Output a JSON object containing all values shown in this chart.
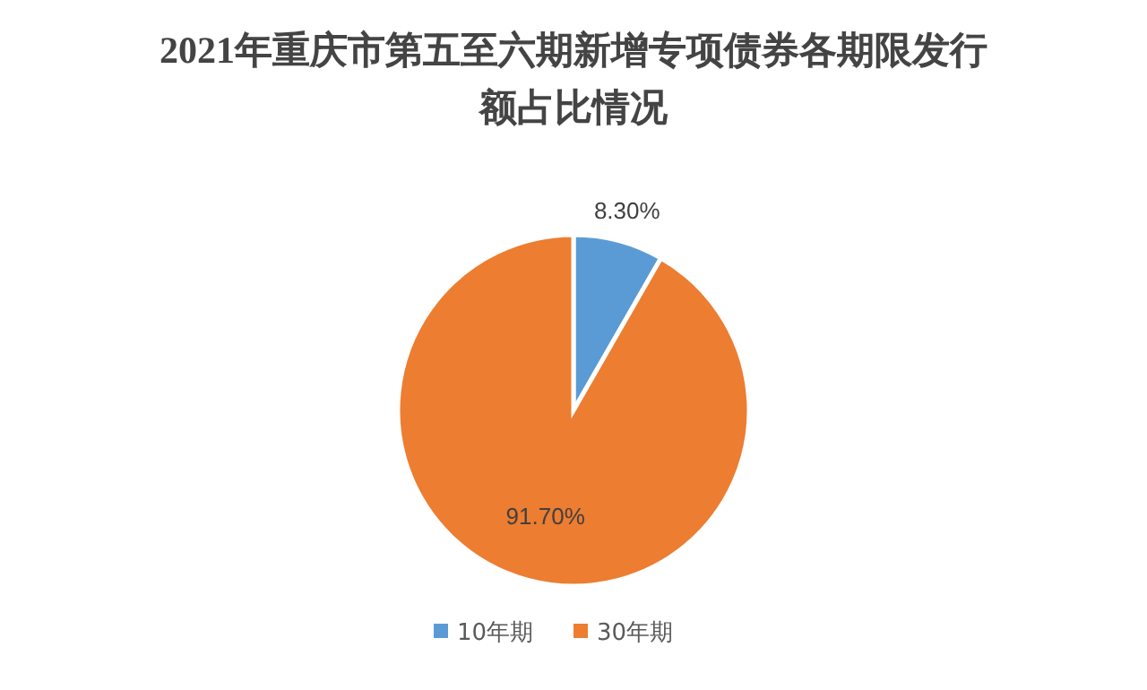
{
  "chart_data": {
    "type": "pie",
    "title": "2021年重庆市第五至六期新增专项债券各期限发行额占比情况",
    "categories": [
      "10年期",
      "30年期"
    ],
    "values": [
      8.3,
      91.7
    ],
    "colors": [
      "#5b9bd5",
      "#ed7d31"
    ],
    "value_labels": [
      "8.30%",
      "91.70%"
    ],
    "legend": "bottom"
  }
}
